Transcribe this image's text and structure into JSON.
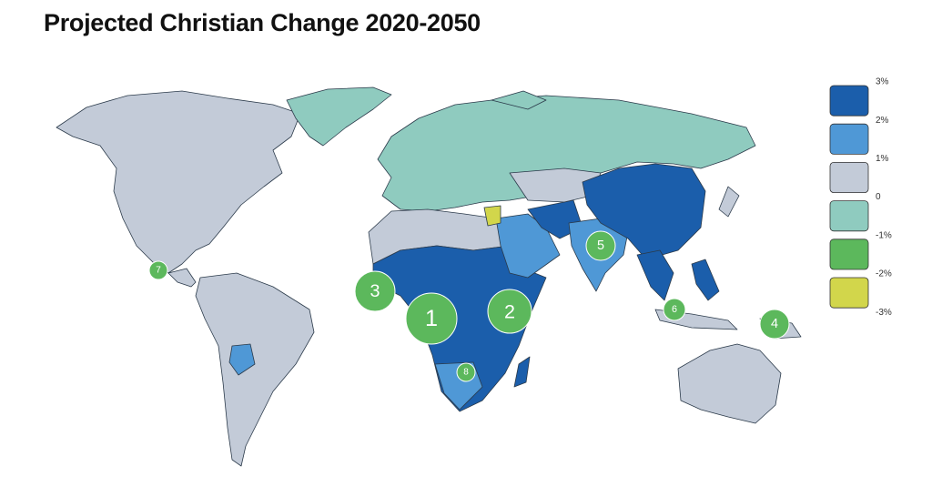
{
  "title": "Projected Christian Change 2020-2050",
  "legend": {
    "labels": [
      "3%",
      "2%",
      "1%",
      "0",
      "-1%",
      "-2%",
      "-3%"
    ],
    "colors": [
      "#1b5eab",
      "#4f98d6",
      "#c3cbd8",
      "#8fcbbf",
      "#5cb85c",
      "#d2d64b"
    ]
  },
  "markers": [
    {
      "label": "1"
    },
    {
      "label": "2"
    },
    {
      "label": "3"
    },
    {
      "label": "4"
    },
    {
      "label": "5"
    },
    {
      "label": "6"
    },
    {
      "label": "7"
    },
    {
      "label": "8"
    }
  ],
  "marker_color": "#5cb85c"
}
